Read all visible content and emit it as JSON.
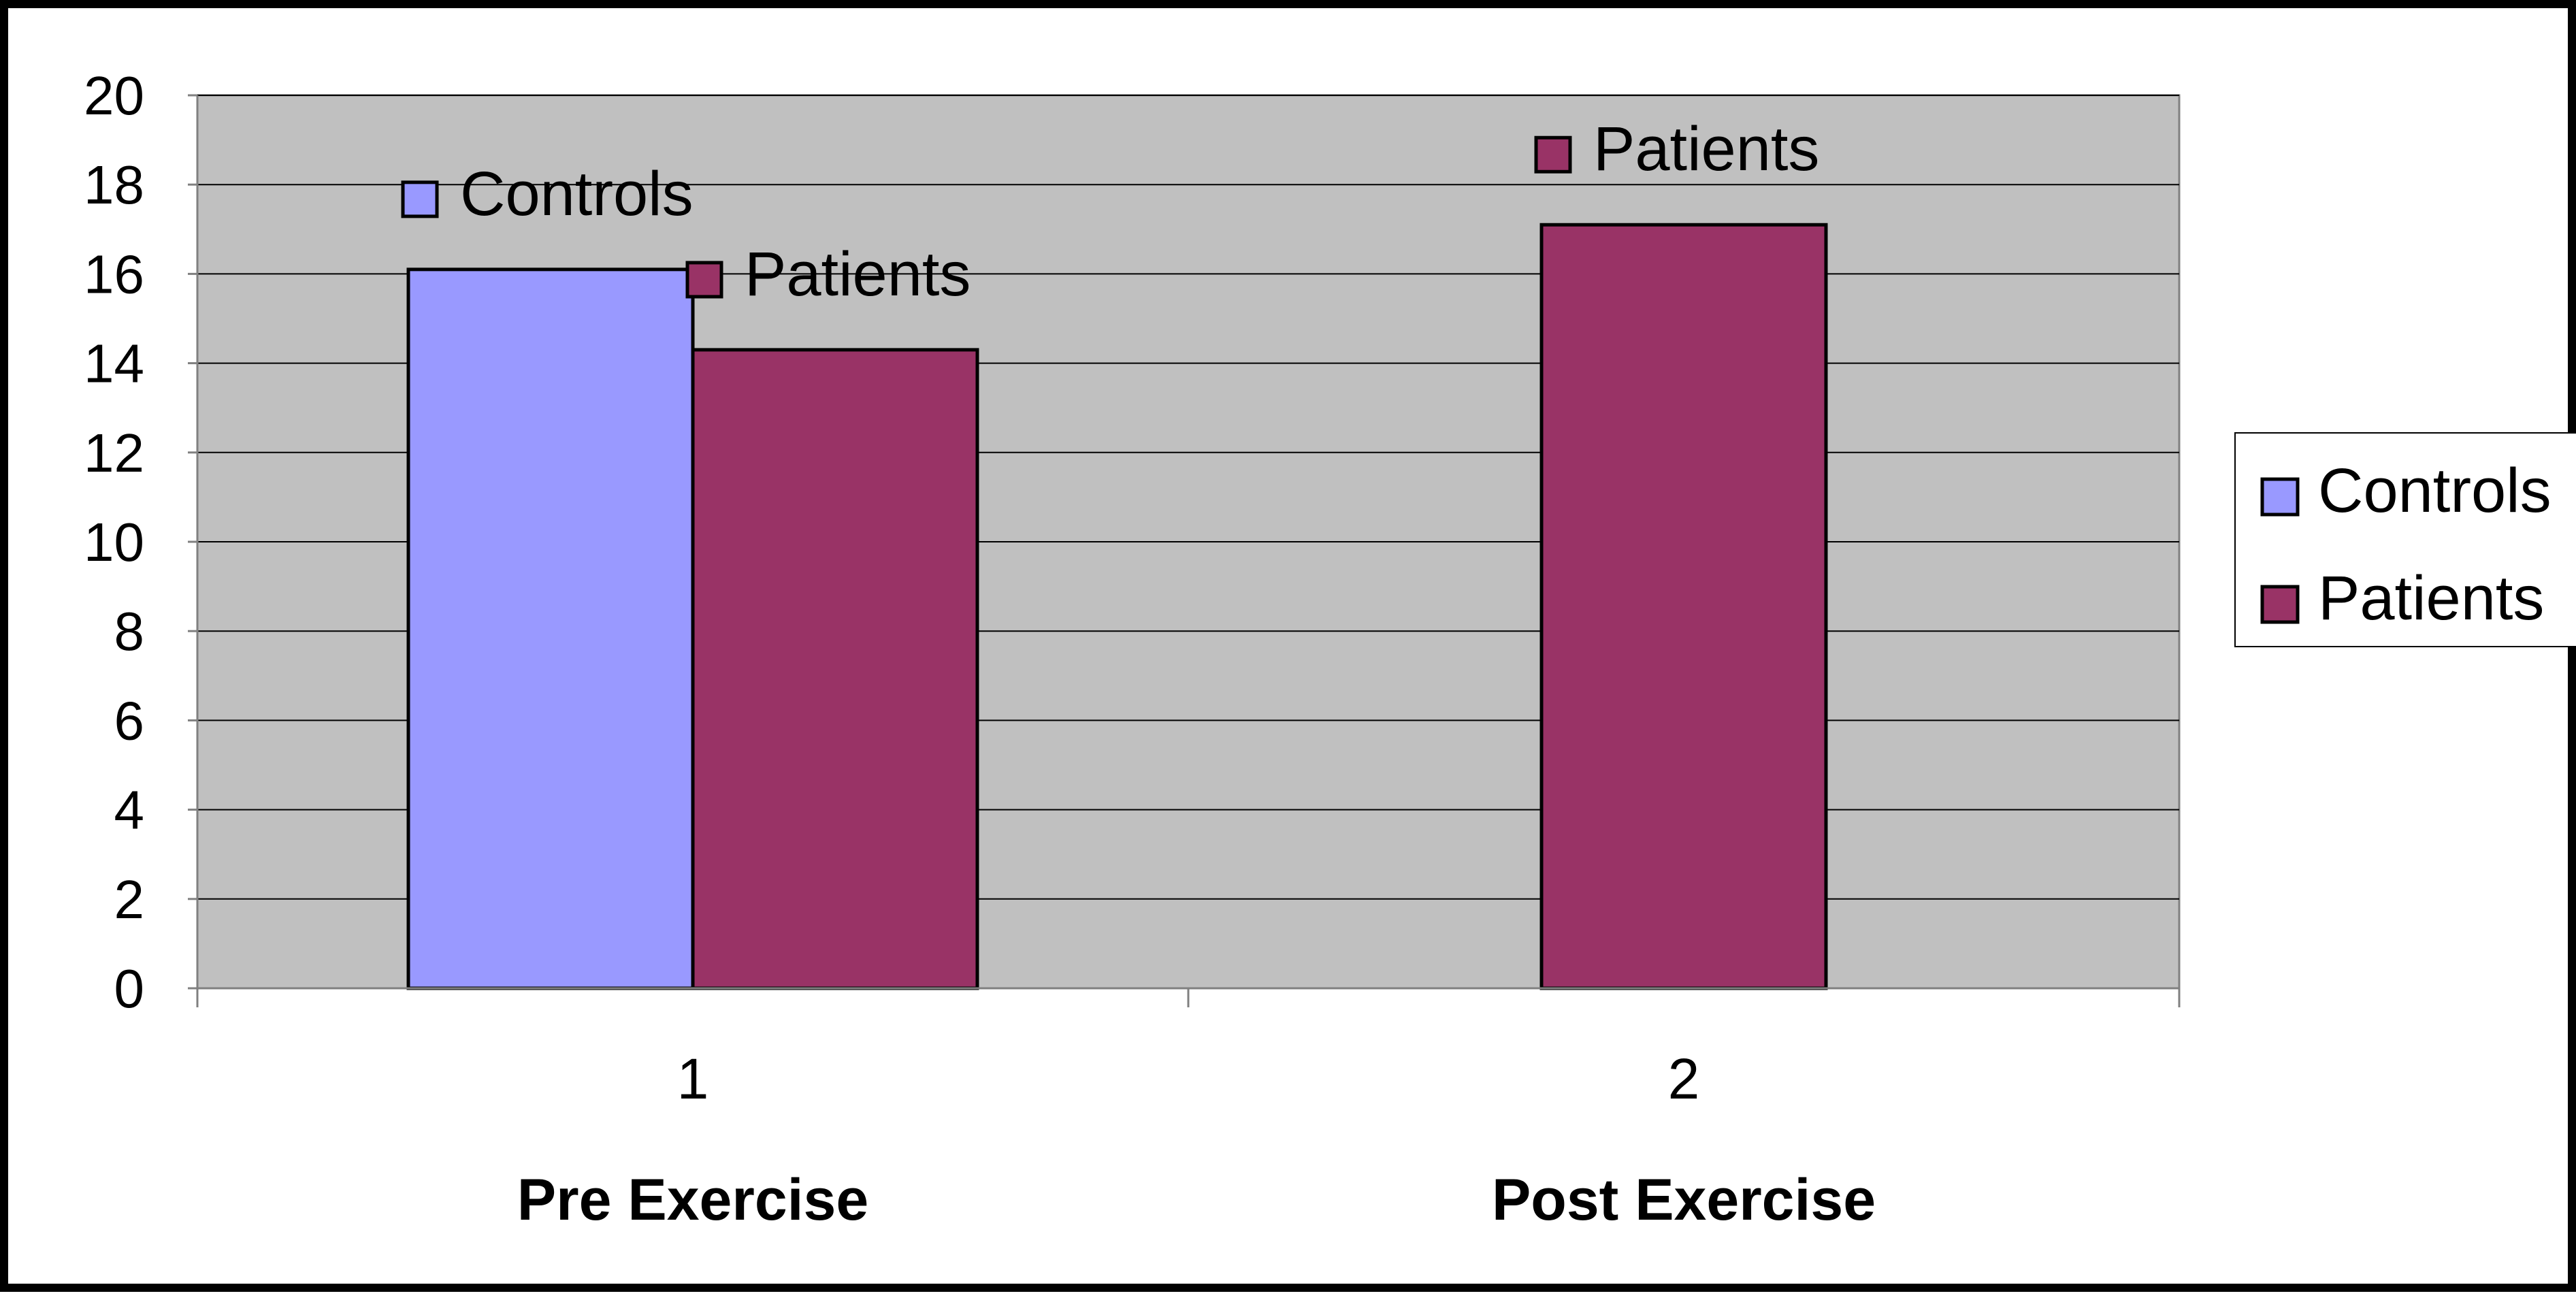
{
  "chart_data": {
    "type": "bar",
    "categories": [
      "1",
      "2"
    ],
    "category_labels": [
      "Pre Exercise",
      "Post Exercise"
    ],
    "series": [
      {
        "name": "Controls",
        "color": "#9999FF",
        "values": [
          16.1,
          null
        ]
      },
      {
        "name": "Patients",
        "color": "#993366",
        "values": [
          14.3,
          17.1
        ]
      }
    ],
    "data_labels": [
      {
        "series": 0,
        "category": 0,
        "text": "Controls"
      },
      {
        "series": 1,
        "category": 0,
        "text": "Patients"
      },
      {
        "series": 1,
        "category": 1,
        "text": "Patients"
      }
    ],
    "ylim": [
      0,
      20
    ],
    "yticks": [
      0,
      2,
      4,
      6,
      8,
      10,
      12,
      14,
      16,
      18,
      20
    ],
    "grid": true,
    "plot_background": "#C0C0C0",
    "legend": {
      "position": "right",
      "entries": [
        "Controls",
        "Patients"
      ]
    }
  }
}
